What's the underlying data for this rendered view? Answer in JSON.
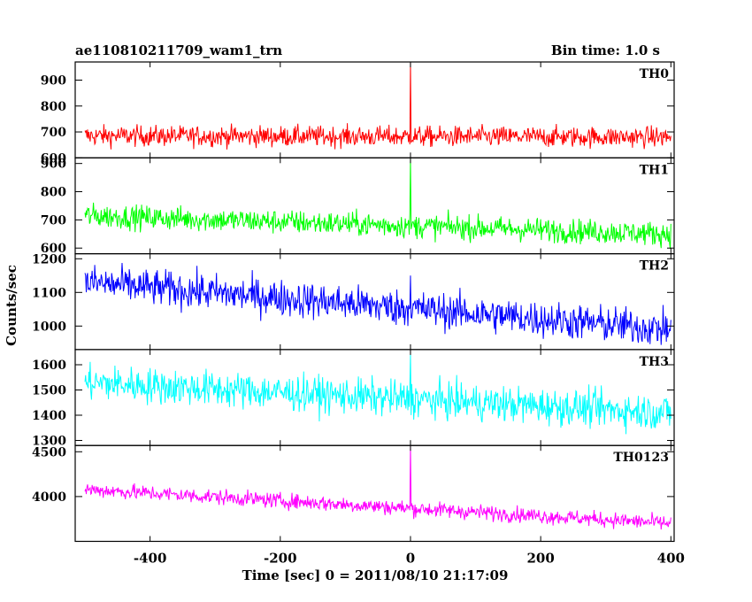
{
  "header": {
    "title": "ae110810211709_wam1_trn",
    "bin_time": "Bin time: 1.0 s"
  },
  "axes": {
    "ylabel": "Counts/sec",
    "xlabel": "Time [sec] 0 = 2011/08/10 21:17:09"
  },
  "chart_data": {
    "type": "line",
    "title": "ae110810211709_wam1_trn",
    "xlabel": "Time [sec] 0 = 2011/08/10 21:17:09",
    "ylabel": "Counts/sec",
    "xlim": [
      -515,
      405
    ],
    "x_ticks": [
      -400,
      -200,
      0,
      200,
      400
    ],
    "bin_time_s": 1.0,
    "grid": false,
    "panels": [
      {
        "name": "TH0",
        "color": "#ff0000",
        "ylim": [
          600,
          970
        ],
        "y_ticks": [
          600,
          700,
          800,
          900
        ],
        "x_range": [
          -500,
          400
        ],
        "trend": [
          685,
          680
        ],
        "noise": 28,
        "spike": {
          "x": 0,
          "value": 970
        }
      },
      {
        "name": "TH1",
        "color": "#00ff00",
        "ylim": [
          580,
          920
        ],
        "y_ticks": [
          600,
          700,
          800,
          900
        ],
        "x_range": [
          -500,
          400
        ],
        "trend": [
          715,
          650
        ],
        "noise": 30,
        "spike": {
          "x": 0,
          "value": 920
        }
      },
      {
        "name": "TH2",
        "color": "#0000ff",
        "ylim": [
          930,
          1215
        ],
        "y_ticks": [
          1000,
          1100,
          1200
        ],
        "x_range": [
          -500,
          400
        ],
        "trend": [
          1130,
          990
        ],
        "noise": 38,
        "spike": {
          "x": 0,
          "value": 1150
        }
      },
      {
        "name": "TH3",
        "color": "#00ffff",
        "ylim": [
          1280,
          1660
        ],
        "y_ticks": [
          1300,
          1400,
          1500,
          1600
        ],
        "x_range": [
          -500,
          400
        ],
        "trend": [
          1530,
          1410
        ],
        "noise": 50,
        "spike": {
          "x": 0,
          "value": 1640
        }
      },
      {
        "name": "TH0123",
        "color": "#ff00ff",
        "ylim": [
          3500,
          4570
        ],
        "y_ticks": [
          4000,
          4500
        ],
        "x_range": [
          -500,
          400
        ],
        "trend": [
          4080,
          3700
        ],
        "noise": 60,
        "spike": {
          "x": 0,
          "value": 4570
        }
      }
    ]
  }
}
